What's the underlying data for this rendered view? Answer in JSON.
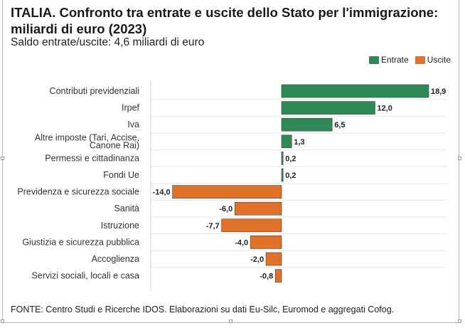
{
  "title": "ITALIA. Confronto tra entrate e uscite dello Stato per l'immigrazione: miliardi di euro (2023)",
  "subtitle": "Saldo entrate/uscite: 4,6 miliardi di euro",
  "legend": {
    "entrate": "Entrate",
    "uscite": "Uscite"
  },
  "colors": {
    "entrate": "#2e8b57",
    "uscite": "#e07126"
  },
  "source": "FONTE: Centro Studi e Ricerche IDOS. Elaborazioni su dati Eu-Silc, Euromod e aggregati Cofog.",
  "chart_data": {
    "type": "bar",
    "orientation": "horizontal",
    "title": "ITALIA. Confronto tra entrate e uscite dello Stato per l'immigrazione: miliardi di euro (2023)",
    "subtitle": "Saldo entrate/uscite: 4,6 miliardi di euro",
    "xlim": [
      -14,
      18.9
    ],
    "grid": false,
    "legend_position": "top-right",
    "categories": [
      "Contributi previdenziali",
      "Irpef",
      "Iva",
      "Altre imposte (Tari, Accise, Canone Rai)",
      "Permessi e cittadinanza",
      "Fondi Ue",
      "Previdenza e sicurezza sociale",
      "Sanità",
      "Istruzione",
      "Giustizia e sicurezza pubblica",
      "Accoglienza",
      "Servizi sociali, locali e casa"
    ],
    "category_lines": [
      [
        "Contributi previdenziali"
      ],
      [
        "Irpef"
      ],
      [
        "Iva"
      ],
      [
        "Altre imposte (Tari, Accise,",
        "Canone Rai)"
      ],
      [
        "Permessi e cittadinanza"
      ],
      [
        "Fondi Ue"
      ],
      [
        "Previdenza e sicurezza sociale"
      ],
      [
        "Sanità"
      ],
      [
        "Istruzione"
      ],
      [
        "Giustizia e sicurezza pubblica"
      ],
      [
        "Accoglienza"
      ],
      [
        "Servizi sociali, locali e casa"
      ]
    ],
    "values": [
      18.9,
      12.0,
      6.5,
      1.3,
      0.2,
      0.2,
      -14.0,
      -6.0,
      -7.7,
      -4.0,
      -2.0,
      -0.8
    ],
    "value_labels": [
      "18,9",
      "12,0",
      "6,5",
      "1,3",
      "0,2",
      "0,2",
      "-14,0",
      "-6,0",
      "-7,7",
      "-4,0",
      "-2,0",
      "-0,8"
    ],
    "series": [
      {
        "name": "Entrate"
      },
      {
        "name": "Uscite"
      }
    ]
  }
}
